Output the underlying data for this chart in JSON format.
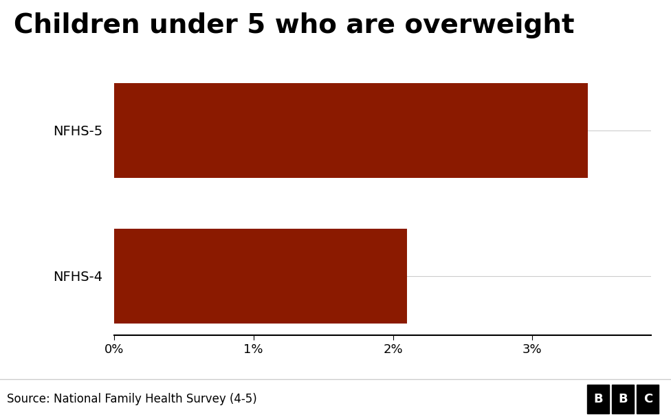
{
  "title": "Children under 5 who are overweight",
  "categories": [
    "NFHS-4",
    "NFHS-5"
  ],
  "values": [
    2.1,
    3.4
  ],
  "bar_color": "#8B1A00",
  "xlim": [
    0,
    3.85
  ],
  "xticks": [
    0,
    1,
    2,
    3
  ],
  "background_color": "#ffffff",
  "title_fontsize": 28,
  "label_fontsize": 14,
  "tick_fontsize": 13,
  "source_text": "Source: National Family Health Survey (4-5)",
  "source_fontsize": 12,
  "footer_bg": "#ffffff",
  "bbc_text": "BBC"
}
